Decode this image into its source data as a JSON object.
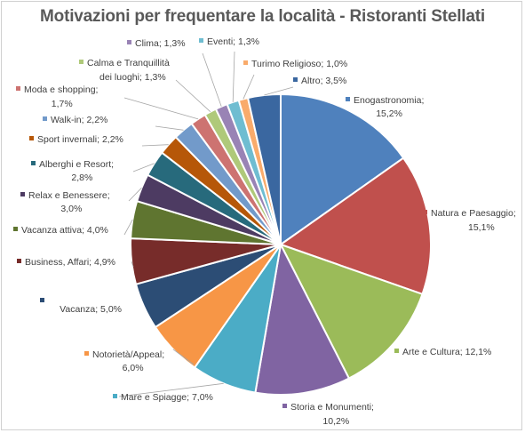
{
  "chart_data": {
    "type": "pie",
    "title": "Motivazioni per frequentare la località - Ristoranti Stellati",
    "slices": [
      {
        "name": "Enogastronomia",
        "value": 15.2,
        "label": "15,2%",
        "color": "#4f81bd"
      },
      {
        "name": "Natura e Paesaggio",
        "value": 15.1,
        "label": "15,1%",
        "color": "#c0504d"
      },
      {
        "name": "Arte e Cultura",
        "value": 12.1,
        "label": "12,1%",
        "color": "#9bbb59"
      },
      {
        "name": "Storia e Monumenti",
        "value": 10.2,
        "label": "10,2%",
        "color": "#8064a2"
      },
      {
        "name": "Mare e Spiagge",
        "value": 7.0,
        "label": "7,0%",
        "color": "#4bacc6"
      },
      {
        "name": "Notorietà/Appeal",
        "value": 6.0,
        "label": "6,0%",
        "color": "#f79646"
      },
      {
        "name": "Vacanza",
        "value": 5.0,
        "label": "5,0%",
        "color": "#2c4d75"
      },
      {
        "name": "Business, Affari",
        "value": 4.9,
        "label": "4,9%",
        "color": "#772c2a"
      },
      {
        "name": "Vacanza attiva",
        "value": 4.0,
        "label": "4,0%",
        "color": "#5f7530"
      },
      {
        "name": "Relax e Benessere",
        "value": 3.0,
        "label": "3,0%",
        "color": "#4d3b62"
      },
      {
        "name": "Alberghi e Resort",
        "value": 2.8,
        "label": "2,8%",
        "color": "#276a7c"
      },
      {
        "name": "Sport invernali",
        "value": 2.2,
        "label": "2,2%",
        "color": "#b65708"
      },
      {
        "name": "Walk-in",
        "value": 2.2,
        "label": "2,2%",
        "color": "#729aca"
      },
      {
        "name": "Moda e shopping",
        "value": 1.7,
        "label": "1,7%",
        "color": "#cd7371"
      },
      {
        "name": "Calma e Tranquillità dei luoghi",
        "value": 1.3,
        "label": "1,3%",
        "color": "#afc97a"
      },
      {
        "name": "Clima",
        "value": 1.3,
        "label": "1,3%",
        "color": "#9983b5"
      },
      {
        "name": "Eventi",
        "value": 1.3,
        "label": "1,3%",
        "color": "#6fbdd1"
      },
      {
        "name": "Turimo Religioso",
        "value": 1.0,
        "label": "1,0%",
        "color": "#f9ab6b"
      },
      {
        "name": "Altro",
        "value": 3.5,
        "label": "3,5%",
        "color": "#3a67a0"
      }
    ]
  }
}
